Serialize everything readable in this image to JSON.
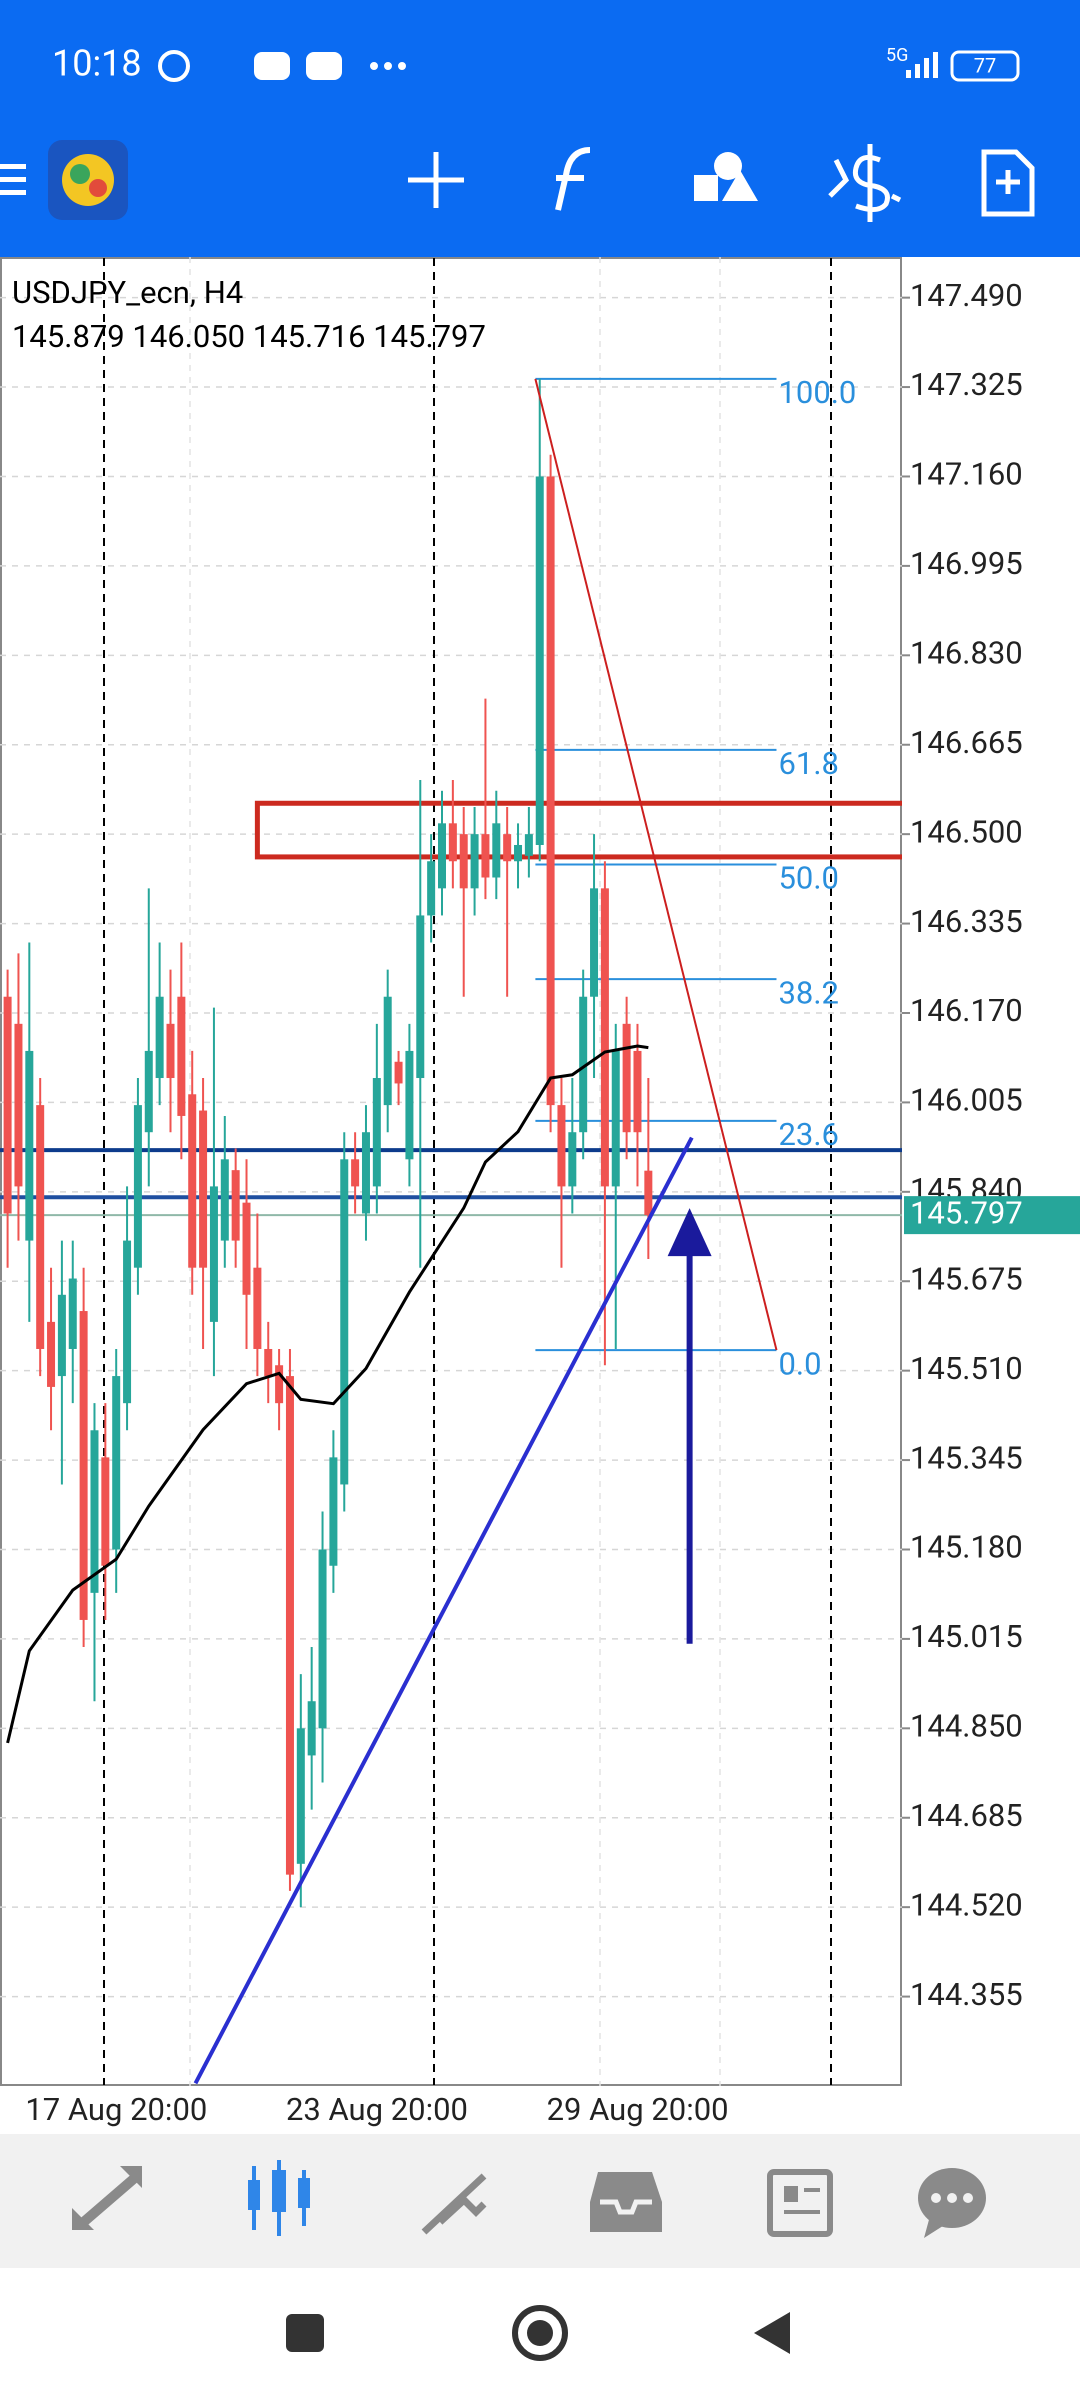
{
  "status_bar": {
    "time": "10:18",
    "network": "5G",
    "battery": "77"
  },
  "chart_data": {
    "type": "candlestick",
    "title": "USDJPY_ecn, H4",
    "subtitle": "145.879 146.050 145.716 145.797",
    "categories": [
      null,
      null,
      "17 Aug 20:00",
      null,
      null,
      null,
      null,
      null,
      null,
      null,
      null,
      null,
      null,
      null,
      null,
      null,
      null,
      null,
      null,
      null,
      null,
      null,
      null,
      null,
      null,
      null,
      "23 Aug 20:00",
      null,
      null,
      null,
      null,
      null,
      null,
      null,
      null,
      null,
      null,
      null,
      null,
      null,
      null,
      null,
      null,
      null,
      null,
      null,
      null,
      null,
      null,
      null,
      "29 Aug 20:00",
      null,
      null,
      null,
      null,
      null,
      null,
      null,
      null,
      null
    ],
    "open": [
      146.2,
      146.15,
      145.75,
      146.0,
      145.6,
      145.5,
      145.55,
      145.62,
      145.1,
      145.35,
      145.18,
      145.45,
      145.7,
      145.95,
      146.05,
      146.15,
      146.2,
      146.02,
      145.99,
      145.6,
      145.75,
      145.88,
      145.82,
      145.7,
      145.55,
      145.52,
      145.5,
      144.6,
      144.8,
      144.85,
      145.15,
      145.3,
      145.9,
      145.8,
      145.85,
      146.0,
      146.08,
      145.9,
      146.05,
      146.35,
      146.4,
      146.52,
      146.5,
      146.4,
      146.5,
      146.42,
      146.5,
      146.45,
      146.46,
      146.48,
      147.16,
      146.0,
      145.85,
      145.95,
      146.2,
      146.4,
      145.85,
      146.15,
      146.1,
      145.879
    ],
    "high": [
      146.25,
      146.28,
      146.3,
      146.05,
      145.7,
      145.75,
      145.75,
      145.7,
      145.45,
      145.45,
      145.55,
      145.85,
      146.05,
      146.4,
      146.3,
      146.25,
      146.3,
      146.1,
      146.05,
      146.18,
      145.98,
      145.92,
      145.9,
      145.8,
      145.6,
      145.55,
      145.55,
      144.95,
      145.0,
      145.25,
      145.4,
      145.95,
      145.95,
      146.0,
      146.15,
      146.25,
      146.1,
      146.15,
      146.6,
      146.5,
      146.58,
      146.6,
      146.55,
      146.55,
      146.75,
      146.58,
      146.55,
      146.52,
      146.55,
      147.34,
      147.2,
      146.05,
      146.05,
      146.25,
      146.5,
      146.45,
      146.15,
      146.2,
      146.15,
      146.05
    ],
    "low": [
      145.7,
      145.75,
      145.6,
      145.5,
      145.4,
      145.3,
      145.45,
      145.0,
      144.9,
      145.05,
      145.1,
      145.4,
      145.65,
      145.85,
      146.0,
      145.95,
      145.9,
      145.65,
      145.55,
      145.5,
      145.7,
      145.7,
      145.55,
      145.5,
      145.45,
      145.4,
      144.55,
      144.52,
      144.7,
      144.75,
      145.1,
      145.25,
      145.8,
      145.75,
      145.8,
      145.95,
      146.0,
      145.85,
      145.7,
      146.3,
      146.35,
      146.4,
      146.2,
      146.35,
      146.38,
      146.38,
      146.2,
      146.4,
      146.42,
      146.45,
      145.95,
      145.7,
      145.8,
      145.9,
      146.05,
      145.52,
      145.55,
      145.9,
      145.85,
      145.716
    ],
    "close": [
      145.8,
      145.85,
      146.1,
      145.55,
      145.48,
      145.65,
      145.68,
      145.05,
      145.4,
      145.15,
      145.5,
      145.75,
      146.0,
      146.1,
      146.2,
      146.05,
      145.98,
      145.7,
      145.7,
      145.85,
      145.9,
      145.75,
      145.65,
      145.55,
      145.5,
      145.45,
      144.58,
      144.85,
      144.9,
      145.18,
      145.35,
      145.9,
      145.85,
      145.95,
      146.05,
      146.2,
      146.04,
      146.1,
      146.35,
      146.45,
      146.52,
      146.45,
      146.4,
      146.5,
      146.42,
      146.52,
      146.45,
      146.48,
      146.5,
      147.16,
      146.0,
      145.85,
      145.95,
      146.2,
      146.4,
      145.85,
      146.1,
      145.95,
      145.95,
      145.797
    ],
    "up_color": "#26a69a",
    "down_color": "#ef5350",
    "moving_average": {
      "color": "#000000",
      "x": [
        0,
        2,
        6,
        10,
        13,
        18,
        22,
        25,
        27,
        30,
        33,
        37,
        42,
        44,
        47,
        50,
        52,
        55,
        58,
        59
      ],
      "values": [
        144.823,
        144.993,
        145.105,
        145.162,
        145.26,
        145.401,
        145.486,
        145.505,
        145.457,
        145.449,
        145.514,
        145.655,
        145.81,
        145.895,
        145.951,
        146.05,
        146.056,
        146.098,
        146.109,
        146.106
      ]
    },
    "current_price": 145.797,
    "horizontal_lines": [
      {
        "value": 145.917,
        "color": "#0d3b8c"
      },
      {
        "value": 145.83,
        "color": "#1f4fa0"
      }
    ],
    "rectangle": {
      "x": 23,
      "top": 146.557,
      "bottom": 146.458,
      "color": "#cc2a1f"
    },
    "trend_line": {
      "x": [
        17.3,
        63.0
      ],
      "values": [
        144.195,
        145.94
      ],
      "color": "#2a2fd0"
    },
    "red_line": {
      "x": [
        48.6,
        70.8
      ],
      "values": [
        147.34,
        145.548
      ],
      "color": "#cc1f1f"
    },
    "arrow": {
      "x": 62.8,
      "values": [
        145.006,
        145.81
      ],
      "color": "#1a1a9c"
    },
    "fibonacci": {
      "x": [
        48.6,
        70.8
      ],
      "high": 147.34,
      "low": 145.548,
      "color": "#2a8fdc",
      "levels": [
        {
          "value": 100,
          "label": "100.0"
        },
        61.8,
        {
          "value": 50,
          "label": "50.0"
        },
        38.2,
        23.6,
        {
          "value": 0,
          "label": "0.0"
        }
      ]
    },
    "ylim": [
      144.19,
      147.565
    ],
    "yticks": [
      {
        "value": 147.49,
        "label": "147.490"
      },
      147.325,
      {
        "value": 147.16,
        "label": "147.160"
      },
      146.995,
      {
        "value": 146.83,
        "label": "146.830"
      },
      146.665,
      {
        "value": 146.5,
        "label": "146.500"
      },
      146.335,
      {
        "value": 146.17,
        "label": "146.170"
      },
      146.005,
      {
        "value": 145.84,
        "label": "145.840"
      },
      145.675,
      {
        "value": 145.51,
        "label": "145.510"
      },
      145.345,
      {
        "value": 145.18,
        "label": "145.180"
      },
      145.015,
      {
        "value": 144.85,
        "label": "144.850"
      },
      144.685,
      {
        "value": 144.52,
        "label": "144.520"
      },
      144.355
    ],
    "grid": true
  }
}
